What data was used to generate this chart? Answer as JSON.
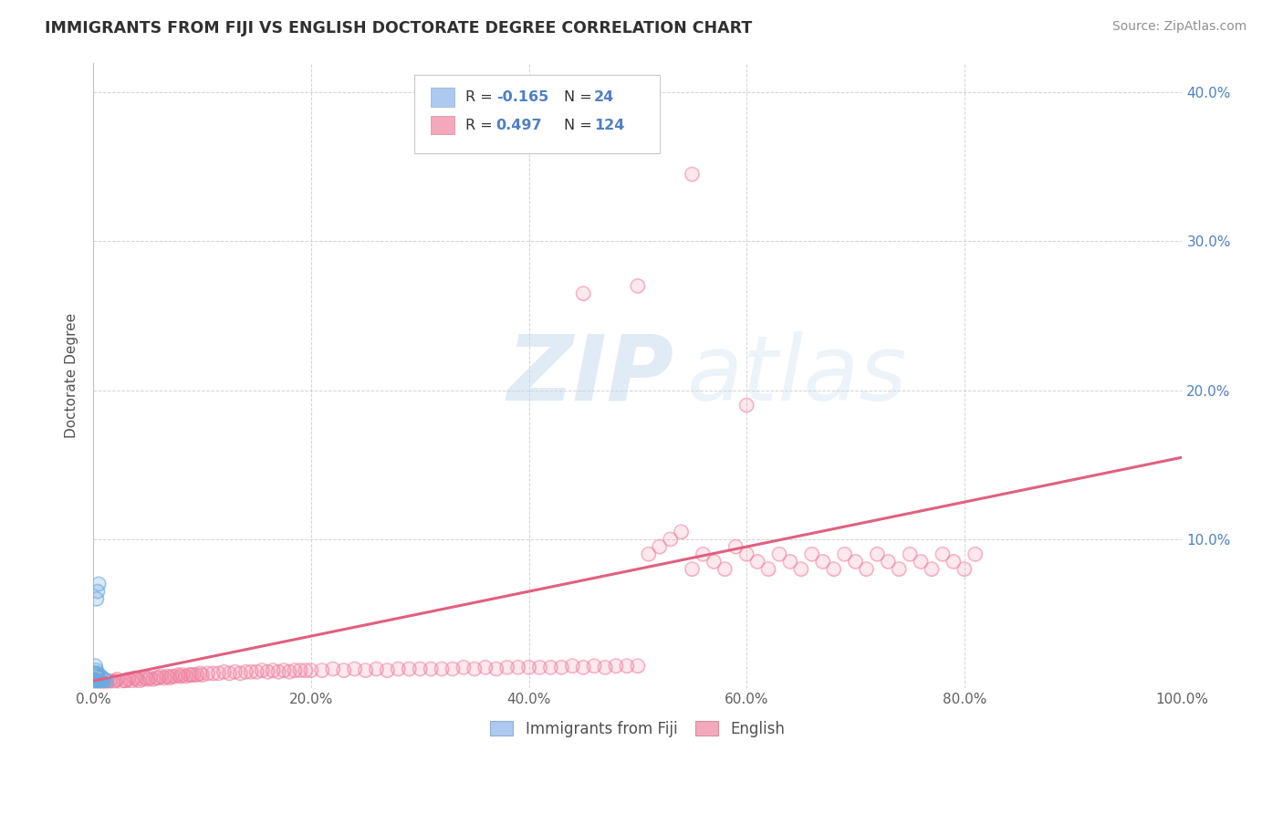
{
  "title": "IMMIGRANTS FROM FIJI VS ENGLISH DOCTORATE DEGREE CORRELATION CHART",
  "source": "Source: ZipAtlas.com",
  "ylabel": "Doctorate Degree",
  "xlim": [
    0,
    1.0
  ],
  "ylim": [
    0,
    0.42
  ],
  "xtick_labels": [
    "0.0%",
    "20.0%",
    "40.0%",
    "60.0%",
    "80.0%",
    "100.0%"
  ],
  "xtick_vals": [
    0.0,
    0.2,
    0.4,
    0.6,
    0.8,
    1.0
  ],
  "ytick_vals": [
    0.1,
    0.2,
    0.3,
    0.4
  ],
  "ytick_labels": [
    "10.0%",
    "20.0%",
    "30.0%",
    "40.0%"
  ],
  "watermark_zip": "ZIP",
  "watermark_atlas": "atlas",
  "legend_r1": "-0.165",
  "legend_n1": "24",
  "legend_r2": "0.497",
  "legend_n2": "124",
  "color_fiji": "#adc9f0",
  "color_english": "#f4a8bc",
  "dot_color_fiji": "#6aaae0",
  "dot_color_english": "#f080a0",
  "trendline_english": "#e06080",
  "trendline_fiji": "#90b8d8",
  "background_color": "#ffffff",
  "grid_color": "#c8c8c8",
  "title_color": "#303030",
  "right_axis_color": "#5080c0",
  "legend_text_color": "#5080c0",
  "legend_r_color": "#e05050",
  "fiji_scatter_x": [
    0.001,
    0.001,
    0.001,
    0.002,
    0.002,
    0.002,
    0.002,
    0.003,
    0.003,
    0.003,
    0.003,
    0.004,
    0.004,
    0.004,
    0.005,
    0.005,
    0.006,
    0.006,
    0.007,
    0.007,
    0.008,
    0.009,
    0.01,
    0.012
  ],
  "fiji_scatter_y": [
    0.005,
    0.008,
    0.01,
    0.004,
    0.006,
    0.01,
    0.015,
    0.005,
    0.008,
    0.012,
    0.06,
    0.007,
    0.01,
    0.065,
    0.006,
    0.07,
    0.005,
    0.008,
    0.006,
    0.008,
    0.007,
    0.005,
    0.006,
    0.005
  ],
  "english_scatter_x": [
    0.005,
    0.008,
    0.01,
    0.012,
    0.015,
    0.018,
    0.02,
    0.022,
    0.025,
    0.028,
    0.03,
    0.032,
    0.035,
    0.038,
    0.04,
    0.042,
    0.045,
    0.048,
    0.05,
    0.052,
    0.055,
    0.058,
    0.06,
    0.062,
    0.065,
    0.068,
    0.07,
    0.072,
    0.075,
    0.078,
    0.08,
    0.082,
    0.085,
    0.088,
    0.09,
    0.092,
    0.095,
    0.098,
    0.1,
    0.105,
    0.11,
    0.115,
    0.12,
    0.125,
    0.13,
    0.135,
    0.14,
    0.145,
    0.15,
    0.155,
    0.16,
    0.165,
    0.17,
    0.175,
    0.18,
    0.185,
    0.19,
    0.195,
    0.2,
    0.21,
    0.22,
    0.23,
    0.24,
    0.25,
    0.26,
    0.27,
    0.28,
    0.29,
    0.3,
    0.31,
    0.32,
    0.33,
    0.34,
    0.35,
    0.36,
    0.37,
    0.38,
    0.39,
    0.4,
    0.41,
    0.42,
    0.43,
    0.44,
    0.45,
    0.46,
    0.47,
    0.48,
    0.49,
    0.5,
    0.51,
    0.52,
    0.53,
    0.54,
    0.55,
    0.56,
    0.57,
    0.58,
    0.59,
    0.6,
    0.61,
    0.62,
    0.63,
    0.64,
    0.65,
    0.66,
    0.67,
    0.68,
    0.69,
    0.7,
    0.71,
    0.72,
    0.73,
    0.74,
    0.75,
    0.76,
    0.77,
    0.78,
    0.79,
    0.8,
    0.81,
    0.45,
    0.5,
    0.55,
    0.6
  ],
  "english_scatter_y": [
    0.002,
    0.003,
    0.004,
    0.003,
    0.005,
    0.004,
    0.005,
    0.006,
    0.004,
    0.005,
    0.005,
    0.006,
    0.005,
    0.007,
    0.006,
    0.005,
    0.006,
    0.007,
    0.006,
    0.007,
    0.006,
    0.007,
    0.007,
    0.008,
    0.007,
    0.008,
    0.007,
    0.008,
    0.008,
    0.009,
    0.008,
    0.009,
    0.008,
    0.009,
    0.009,
    0.009,
    0.009,
    0.01,
    0.009,
    0.01,
    0.01,
    0.01,
    0.011,
    0.01,
    0.011,
    0.01,
    0.011,
    0.011,
    0.011,
    0.012,
    0.011,
    0.012,
    0.011,
    0.012,
    0.011,
    0.012,
    0.012,
    0.012,
    0.012,
    0.012,
    0.013,
    0.012,
    0.013,
    0.012,
    0.013,
    0.012,
    0.013,
    0.013,
    0.013,
    0.013,
    0.013,
    0.013,
    0.014,
    0.013,
    0.014,
    0.013,
    0.014,
    0.014,
    0.014,
    0.014,
    0.014,
    0.014,
    0.015,
    0.014,
    0.015,
    0.014,
    0.015,
    0.015,
    0.015,
    0.09,
    0.095,
    0.1,
    0.105,
    0.08,
    0.09,
    0.085,
    0.08,
    0.095,
    0.09,
    0.085,
    0.08,
    0.09,
    0.085,
    0.08,
    0.09,
    0.085,
    0.08,
    0.09,
    0.085,
    0.08,
    0.09,
    0.085,
    0.08,
    0.09,
    0.085,
    0.08,
    0.09,
    0.085,
    0.08,
    0.09,
    0.265,
    0.27,
    0.345,
    0.19
  ]
}
